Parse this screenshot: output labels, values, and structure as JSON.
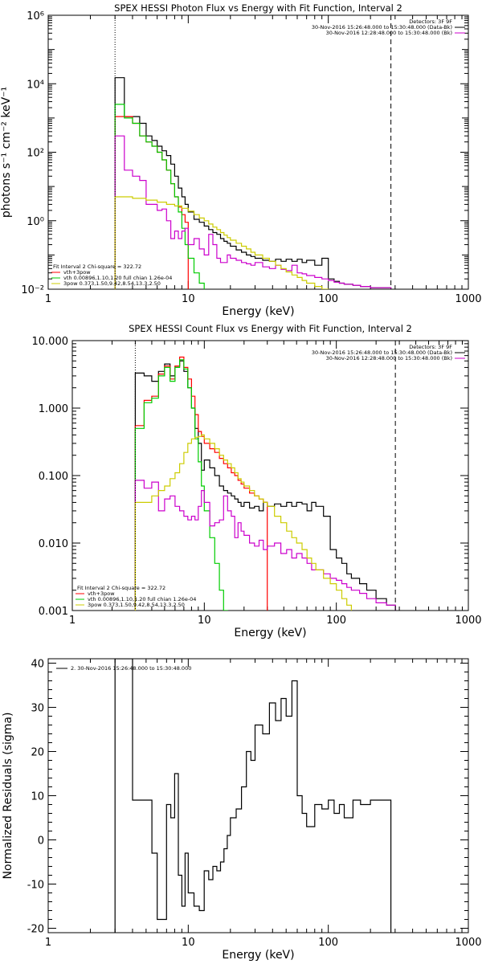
{
  "chart_data": [
    {
      "type": "line",
      "title": "SPEX HESSI Photon Flux vs Energy with Fit Function, Interval 2",
      "xlabel": "Energy (keV)",
      "ylabel": "photons s⁻¹ cm⁻² keV⁻¹",
      "xscale": "log",
      "yscale": "log",
      "xlim": [
        1,
        1000
      ],
      "ylim": [
        0.01,
        1000000
      ],
      "xticks": [
        {
          "v": 1,
          "label": "1"
        },
        {
          "v": 10,
          "label": "10"
        },
        {
          "v": 100,
          "label": "100"
        },
        {
          "v": 1000,
          "label": "1000"
        }
      ],
      "yticks": [
        {
          "v": 0.01,
          "label": "10⁻²"
        },
        {
          "v": 1,
          "label": "10⁰"
        },
        {
          "v": 100,
          "label": "10²"
        },
        {
          "v": 10000,
          "label": "10⁴"
        },
        {
          "v": 1000000,
          "label": "10⁶"
        }
      ],
      "vlines": [
        {
          "x": 3,
          "style": "dotted"
        },
        {
          "x": 280,
          "style": "dashed"
        }
      ],
      "legend_topright": [
        "Detectors: 3F 9F",
        "30-Nov-2016 15:26:48.000 to 15:30:48.000 (Data-Bk)",
        "30-Nov-2016 12:28:48.000 to 15:30:48.000 (Bk)"
      ],
      "legend_topright_colors": [
        "",
        "#000000",
        "#cc00cc"
      ],
      "legend_bottomleft": [
        "Fit Interval 2   Chi-square = 322.72",
        "vth+3pow",
        "vth 0.00896,1.10,1.20  full chian 1.26e-04",
        "3pow 0.373,1.50,9.42,8.54,13.3,2.50"
      ],
      "legend_bottomleft_colors": [
        "",
        "#ff0000",
        "#00cc00",
        "#cccc00"
      ],
      "series": [
        {
          "color": "#000000",
          "edges": [
            3,
            3.5,
            4,
            4.5,
            5,
            5.5,
            6,
            6.5,
            7,
            7.5,
            8,
            8.5,
            9,
            9.5,
            10,
            11,
            12,
            13,
            14,
            15,
            16,
            17,
            18,
            19,
            20,
            22,
            24,
            26,
            28,
            30,
            34,
            38,
            42,
            46,
            50,
            55,
            60,
            65,
            70,
            80,
            90,
            100,
            110,
            120,
            130,
            150,
            170,
            200,
            240,
            280
          ],
          "values": [
            15000,
            1100,
            1100,
            700,
            300,
            220,
            150,
            110,
            80,
            45,
            20,
            9,
            5,
            3,
            1.8,
            1.1,
            0.9,
            0.7,
            0.55,
            0.45,
            0.4,
            0.3,
            0.25,
            0.22,
            0.18,
            0.14,
            0.12,
            0.1,
            0.09,
            0.08,
            0.07,
            0.065,
            0.075,
            0.065,
            0.075,
            0.065,
            0.075,
            0.06,
            0.07,
            0.05,
            0.08,
            0.02,
            0.017,
            0.015,
            0.014,
            0.013,
            0.012,
            0.011,
            0.011
          ]
        },
        {
          "color": "#ff0000",
          "edges": [
            3,
            3.5,
            4,
            4.5,
            5,
            5.5,
            6,
            6.5,
            7,
            7.5,
            8,
            8.5,
            9,
            9.5,
            10
          ],
          "values": [
            1100,
            1100,
            700,
            300,
            200,
            150,
            100,
            60,
            30,
            12,
            5,
            2.5,
            1.5,
            0.9
          ]
        },
        {
          "color": "#00cc00",
          "edges": [
            3,
            3.5,
            4,
            4.5,
            5,
            5.5,
            6,
            6.5,
            7,
            7.5,
            8,
            8.5,
            9,
            9.5,
            10,
            11,
            12,
            13,
            14,
            15
          ],
          "values": [
            2500,
            1000,
            700,
            300,
            200,
            150,
            100,
            60,
            30,
            12,
            5,
            1.8,
            0.6,
            0.2,
            0.08,
            0.03,
            0.015,
            0.008,
            0.004
          ]
        },
        {
          "color": "#cc00cc",
          "edges": [
            3,
            3.5,
            4,
            4.5,
            5,
            5.5,
            6,
            6.5,
            7,
            7.5,
            8,
            8.5,
            9,
            9.5,
            10,
            11,
            12,
            13,
            14,
            15,
            16,
            17,
            18,
            19,
            20,
            22,
            24,
            26,
            28,
            30,
            34,
            38,
            42,
            46,
            50,
            55,
            60,
            65,
            70,
            80,
            90,
            100,
            110,
            120,
            130,
            150,
            170,
            200,
            240,
            280
          ],
          "values": [
            300,
            30,
            20,
            15,
            3,
            3,
            2,
            2.2,
            1,
            0.3,
            0.5,
            0.3,
            0.5,
            0.6,
            0.2,
            0.3,
            0.15,
            0.1,
            0.4,
            0.2,
            0.08,
            0.06,
            0.06,
            0.1,
            0.08,
            0.07,
            0.06,
            0.055,
            0.05,
            0.06,
            0.045,
            0.04,
            0.05,
            0.038,
            0.035,
            0.05,
            0.03,
            0.028,
            0.025,
            0.022,
            0.02,
            0.018,
            0.016,
            0.015,
            0.014,
            0.013,
            0.012,
            0.011,
            0.011
          ]
        },
        {
          "color": "#cccc00",
          "edges": [
            3,
            4,
            5,
            6,
            7,
            8,
            9,
            10,
            11,
            12,
            13,
            14,
            15,
            16,
            17,
            18,
            19,
            20,
            22,
            24,
            26,
            28,
            30,
            34,
            38,
            42,
            46,
            50,
            55,
            60,
            65,
            70,
            80,
            90,
            100,
            110,
            120,
            130,
            140
          ],
          "values": [
            5,
            4.5,
            4,
            3.5,
            3,
            2.7,
            2.3,
            1.9,
            1.5,
            1.2,
            1,
            0.8,
            0.65,
            0.55,
            0.45,
            0.38,
            0.32,
            0.27,
            0.22,
            0.18,
            0.15,
            0.12,
            0.1,
            0.08,
            0.065,
            0.05,
            0.04,
            0.032,
            0.026,
            0.022,
            0.018,
            0.015,
            0.012,
            0.01,
            0.009,
            0.008,
            0.007,
            0.006
          ]
        }
      ]
    },
    {
      "type": "line",
      "title": "SPEX HESSI Count Flux vs Energy with Fit Function, Interval 2",
      "xlabel": "Energy (keV)",
      "ylabel": "",
      "xscale": "log",
      "yscale": "log",
      "xlim": [
        1,
        1000
      ],
      "ylim": [
        0.001,
        10
      ],
      "xticks": [
        {
          "v": 1,
          "label": "1"
        },
        {
          "v": 10,
          "label": "10"
        },
        {
          "v": 100,
          "label": "100"
        },
        {
          "v": 1000,
          "label": "1000"
        }
      ],
      "yticks": [
        {
          "v": 0.001,
          "label": "0.001"
        },
        {
          "v": 0.01,
          "label": "0.010"
        },
        {
          "v": 0.1,
          "label": "0.100"
        },
        {
          "v": 1,
          "label": "1.000"
        },
        {
          "v": 10,
          "label": "10.000"
        }
      ],
      "vlines": [
        {
          "x": 3,
          "style": "dotted"
        },
        {
          "x": 280,
          "style": "dashed"
        }
      ],
      "legend_topright": [
        "Detectors: 3F 9F",
        "30-Nov-2016 15:26:48.000 to 15:30:48.000 (Data-Bk)",
        "30-Nov-2016 12:28:48.000 to 15:30:48.000 (Bk)"
      ],
      "legend_topright_colors": [
        "",
        "#000000",
        "#cc00cc"
      ],
      "legend_bottomleft": [
        "Fit Interval 2   Chi-square = 322.72",
        "vth+3pow",
        "vth 0.00896,1.10,1.20  full chian 1.26e-04",
        "3pow 0.373,1.50,9.42,8.54,13.3,2.50"
      ],
      "legend_bottomleft_colors": [
        "",
        "#ff0000",
        "#00cc00",
        "#cccc00"
      ],
      "series": [
        {
          "color": "#000000",
          "edges": [
            3,
            3.5,
            4,
            4.5,
            5,
            5.5,
            6,
            6.5,
            7,
            7.5,
            8,
            8.5,
            9,
            9.5,
            10,
            11,
            12,
            13,
            14,
            15,
            16,
            17,
            18,
            19,
            20,
            22,
            24,
            26,
            28,
            30,
            34,
            38,
            42,
            46,
            50,
            55,
            60,
            65,
            70,
            80,
            90,
            100,
            110,
            120,
            130,
            150,
            170,
            200,
            240,
            280
          ],
          "values": [
            3.3,
            3.0,
            2.5,
            3.5,
            4.5,
            3.0,
            4.2,
            5.0,
            3.5,
            2.0,
            1.0,
            0.5,
            0.3,
            0.12,
            0.17,
            0.13,
            0.1,
            0.07,
            0.06,
            0.055,
            0.05,
            0.045,
            0.04,
            0.035,
            0.04,
            0.033,
            0.035,
            0.03,
            0.04,
            0.035,
            0.038,
            0.035,
            0.04,
            0.035,
            0.04,
            0.038,
            0.03,
            0.04,
            0.035,
            0.025,
            0.008,
            0.006,
            0.005,
            0.0035,
            0.003,
            0.0025,
            0.002,
            0.0015,
            0.0012
          ]
        },
        {
          "color": "#ff0000",
          "edges": [
            3,
            3.5,
            4,
            4.5,
            5,
            5.5,
            6,
            6.5,
            7,
            7.5,
            8,
            8.5,
            9,
            9.5,
            10,
            11,
            12,
            13,
            14,
            15,
            16,
            17,
            18,
            19,
            20,
            22,
            24,
            26,
            28,
            30
          ],
          "values": [
            0.55,
            1.3,
            1.5,
            3.2,
            4.2,
            2.7,
            4.2,
            5.7,
            4.0,
            2.7,
            1.5,
            0.8,
            0.45,
            0.38,
            0.3,
            0.25,
            0.22,
            0.18,
            0.15,
            0.13,
            0.11,
            0.1,
            0.085,
            0.075,
            0.065,
            0.055,
            0.05,
            0.045,
            0.04
          ]
        },
        {
          "color": "#00cc00",
          "edges": [
            3,
            3.5,
            4,
            4.5,
            5,
            5.5,
            6,
            6.5,
            7,
            7.5,
            8,
            8.5,
            9,
            9.5,
            10,
            11,
            12,
            13,
            14,
            15
          ],
          "values": [
            0.5,
            1.2,
            1.4,
            3.0,
            4.0,
            2.5,
            4.0,
            5.2,
            3.8,
            2.0,
            1.0,
            0.35,
            0.16,
            0.07,
            0.03,
            0.012,
            0.005,
            0.002,
            0.001
          ]
        },
        {
          "color": "#cc00cc",
          "edges": [
            3,
            3.5,
            4,
            4.5,
            5,
            5.5,
            6,
            6.5,
            7,
            7.5,
            8,
            8.5,
            9,
            9.5,
            10,
            11,
            12,
            13,
            14,
            15,
            16,
            17,
            18,
            19,
            20,
            22,
            24,
            26,
            28,
            30,
            34,
            38,
            42,
            46,
            50,
            55,
            60,
            65,
            70,
            80,
            90,
            100,
            110,
            120,
            130,
            150,
            170,
            200,
            240,
            280
          ],
          "values": [
            0.085,
            0.065,
            0.08,
            0.03,
            0.045,
            0.05,
            0.035,
            0.03,
            0.025,
            0.022,
            0.025,
            0.022,
            0.035,
            0.06,
            0.04,
            0.018,
            0.02,
            0.022,
            0.05,
            0.03,
            0.025,
            0.012,
            0.02,
            0.015,
            0.013,
            0.01,
            0.009,
            0.011,
            0.008,
            0.009,
            0.01,
            0.007,
            0.008,
            0.006,
            0.007,
            0.006,
            0.005,
            0.004,
            0.004,
            0.0035,
            0.003,
            0.0028,
            0.0025,
            0.0022,
            0.002,
            0.0018,
            0.0015,
            0.0013,
            0.0012
          ]
        },
        {
          "color": "#cccc00",
          "edges": [
            3,
            3.5,
            4,
            4.5,
            5,
            5.5,
            6,
            6.5,
            7,
            7.5,
            8,
            8.5,
            9,
            9.5,
            10,
            11,
            12,
            13,
            14,
            15,
            16,
            17,
            18,
            19,
            20,
            22,
            24,
            26,
            28,
            30,
            34,
            38,
            42,
            46,
            50,
            55,
            60,
            65,
            70,
            80,
            90,
            100,
            110,
            120,
            130
          ],
          "values": [
            0.04,
            0.04,
            0.05,
            0.06,
            0.07,
            0.09,
            0.11,
            0.15,
            0.22,
            0.3,
            0.35,
            0.37,
            0.38,
            0.4,
            0.35,
            0.3,
            0.25,
            0.2,
            0.17,
            0.15,
            0.13,
            0.11,
            0.09,
            0.08,
            0.07,
            0.06,
            0.05,
            0.045,
            0.04,
            0.035,
            0.025,
            0.02,
            0.015,
            0.012,
            0.01,
            0.008,
            0.006,
            0.005,
            0.004,
            0.003,
            0.0025,
            0.002,
            0.0015,
            0.0012
          ]
        }
      ]
    },
    {
      "type": "line",
      "title": "",
      "xlabel": "Energy (keV)",
      "ylabel": "Normalized Residuals (sigma)",
      "xscale": "log",
      "yscale": "linear",
      "xlim": [
        1,
        1000
      ],
      "ylim": [
        -21,
        41
      ],
      "xticks": [
        {
          "v": 1,
          "label": "1"
        },
        {
          "v": 10,
          "label": "10"
        },
        {
          "v": 100,
          "label": "100"
        },
        {
          "v": 1000,
          "label": "1000"
        }
      ],
      "yticks": [
        {
          "v": -20,
          "label": "-20"
        },
        {
          "v": -10,
          "label": "-10"
        },
        {
          "v": 0,
          "label": "0"
        },
        {
          "v": 10,
          "label": "10"
        },
        {
          "v": 20,
          "label": "20"
        },
        {
          "v": 30,
          "label": "30"
        },
        {
          "v": 40,
          "label": "40"
        }
      ],
      "vlines": [],
      "legend_topleft": "2. 30-Nov-2016 15:26:48.000 to 15:30:48.000",
      "series": [
        {
          "color": "#000000",
          "edges": [
            3,
            4,
            5,
            5.5,
            6,
            6.5,
            7,
            7.5,
            8,
            8.5,
            9,
            9.5,
            10,
            11,
            12,
            13,
            14,
            15,
            16,
            17,
            18,
            19,
            20,
            22,
            24,
            26,
            28,
            30,
            34,
            38,
            42,
            46,
            50,
            55,
            60,
            65,
            70,
            80,
            90,
            100,
            110,
            120,
            130,
            150,
            170,
            200,
            240,
            280
          ],
          "values": [
            41,
            9,
            9,
            -3,
            -18,
            -18,
            8,
            5,
            15,
            -8,
            -15,
            -3,
            -12,
            -15,
            -16,
            -7,
            -9,
            -6,
            -7,
            -5,
            -2,
            1,
            5,
            7,
            12,
            20,
            18,
            26,
            24,
            31,
            27,
            32,
            28,
            36,
            10,
            6,
            3,
            8,
            7,
            9,
            6,
            8,
            5,
            9,
            8,
            9,
            9
          ]
        }
      ]
    }
  ]
}
